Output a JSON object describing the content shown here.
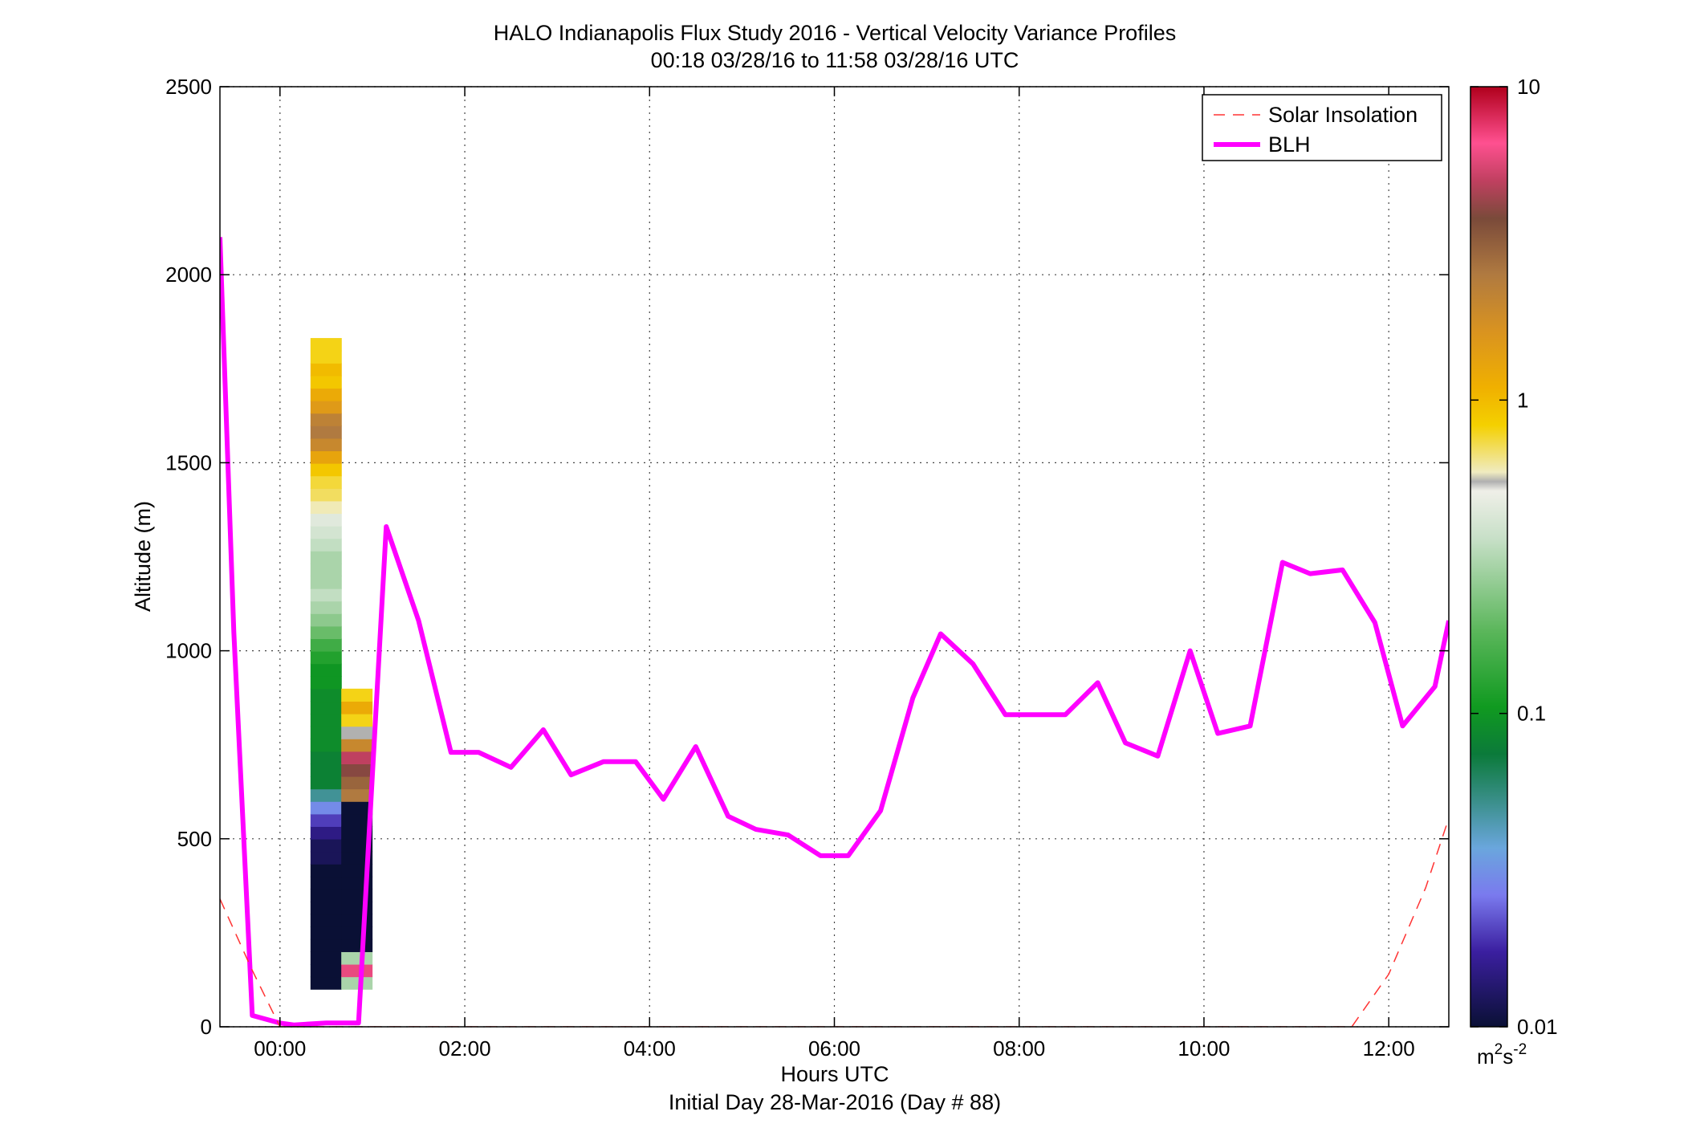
{
  "chart_data": {
    "type": "heatmap",
    "title": "HALO Indianapolis Flux Study 2016 - Vertical Velocity Variance Profiles",
    "subtitle": "00:18 03/28/16 to 11:58 03/28/16  UTC",
    "xlabel": "Hours UTC",
    "xlabel2": "Initial Day 28-Mar-2016 (Day # 88)",
    "ylabel": "Altitude (m)",
    "xlim": [
      -0.65,
      12.65
    ],
    "ylim": [
      0,
      2500
    ],
    "x_ticks": [
      0,
      2,
      4,
      6,
      8,
      10,
      12
    ],
    "x_tick_labels": [
      "00:00",
      "02:00",
      "04:00",
      "06:00",
      "08:00",
      "10:00",
      "12:00"
    ],
    "y_ticks": [
      0,
      500,
      1000,
      1500,
      2000,
      2500
    ],
    "y_tick_labels": [
      "0",
      "500",
      "1000",
      "1500",
      "2000",
      "2500"
    ],
    "grid": true,
    "colorbar": {
      "scale": "log",
      "range": [
        0.01,
        10
      ],
      "ticks": [
        0.01,
        0.1,
        1,
        10
      ],
      "tick_labels": [
        "0.01",
        "0.1",
        "1",
        "10"
      ],
      "unit_base": "m",
      "unit_exp1": "2",
      "unit_mid": "s",
      "unit_exp2": "-2"
    },
    "legend_position": "top-right",
    "colors": {
      "blh": "#ff00ff",
      "solar": "#ff3333"
    },
    "series": [
      {
        "name": "BLH",
        "x": [
          -0.65,
          -0.5,
          -0.3,
          -0.15,
          0.0,
          0.15,
          0.5,
          0.85,
          1.15,
          1.5,
          1.85,
          2.15,
          2.5,
          2.85,
          3.15,
          3.5,
          3.85,
          4.15,
          4.5,
          4.85,
          5.15,
          5.5,
          5.85,
          6.15,
          6.5,
          6.85,
          7.15,
          7.5,
          7.85,
          8.15,
          8.5,
          8.85,
          9.15,
          9.5,
          9.85,
          10.15,
          10.5,
          10.85,
          11.15,
          11.5,
          11.85,
          12.15,
          12.5,
          12.65
        ],
        "y": [
          2100,
          1050,
          30,
          20,
          10,
          5,
          10,
          10,
          1330,
          1080,
          730,
          730,
          690,
          790,
          670,
          705,
          705,
          605,
          745,
          560,
          525,
          510,
          455,
          455,
          575,
          875,
          1045,
          965,
          830,
          830,
          830,
          915,
          755,
          720,
          1000,
          780,
          800,
          1235,
          1205,
          1215,
          1075,
          800,
          905,
          1080
        ]
      },
      {
        "name": "Solar Insolation",
        "x": [
          -0.65,
          -0.3,
          0.0,
          11.6,
          12.0,
          12.4,
          12.65
        ],
        "y": [
          340,
          150,
          0,
          0,
          140,
          370,
          555
        ]
      }
    ],
    "heatmap": {
      "x_start": 0.33,
      "col_width": 0.3333,
      "y_start": 100,
      "row_height": 33.3,
      "note": "columns listed bottom row first; values in m^2 s^-2",
      "columns": [
        [
          0.01,
          0.01,
          0.01,
          0.01,
          0.01,
          0.01,
          0.01,
          0.01,
          0.01,
          0.01,
          0.012,
          0.012,
          0.015,
          0.02,
          0.03,
          0.05,
          0.08,
          0.08,
          0.08,
          0.09,
          0.09,
          0.09,
          0.09,
          0.09,
          0.1,
          0.1,
          0.12,
          0.15,
          0.2,
          0.25,
          0.3,
          0.35,
          0.3,
          0.3,
          0.3,
          0.35,
          0.4,
          0.45,
          0.6,
          0.7,
          0.75,
          0.9,
          1.3,
          2.0,
          2.5,
          2.2,
          1.5,
          1.2,
          0.9,
          1.0,
          0.8,
          0.8
        ],
        [
          0.3,
          6.0,
          0.3,
          0.01,
          0.01,
          0.01,
          0.01,
          0.01,
          0.01,
          0.01,
          0.01,
          0.01,
          0.01,
          0.01,
          0.01,
          2.5,
          3.0,
          4.0,
          5.0,
          2.0,
          0.55,
          0.8,
          1.2,
          0.8
        ]
      ]
    }
  },
  "legend": {
    "items": [
      "Solar Insolation",
      "BLH"
    ]
  }
}
